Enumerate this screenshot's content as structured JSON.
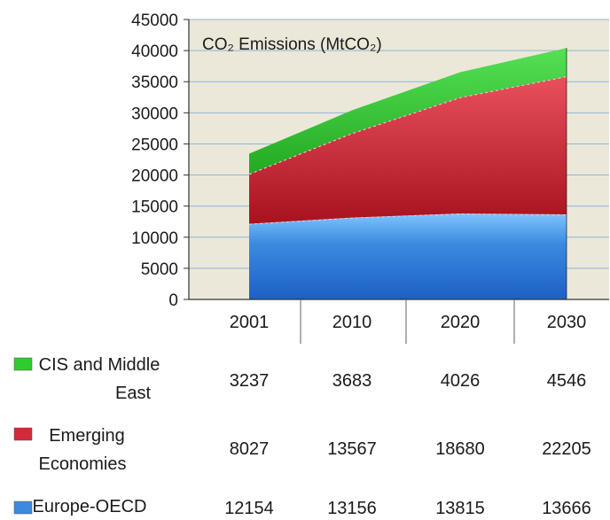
{
  "chart_data": {
    "type": "area",
    "title": "CO₂ Emissions (MtCO₂)",
    "xlabel": "",
    "ylabel": "",
    "ylim": [
      0,
      45000
    ],
    "yticks": [
      "45000",
      "40000",
      "35000",
      "30000",
      "25000",
      "20000",
      "15000",
      "10000",
      "5000",
      "0"
    ],
    "categories": [
      "2001",
      "2010",
      "2020",
      "2030"
    ],
    "stacked": true,
    "grid": true,
    "legend": "data-table-left",
    "series": [
      {
        "name": "CIS and Middle East",
        "name_lines": [
          "CIS and Middle",
          "East"
        ],
        "color": "#2ecc2e",
        "values": [
          3237,
          3683,
          4026,
          4546
        ],
        "value_labels": [
          "3237",
          "3683",
          "4026",
          "4546"
        ]
      },
      {
        "name": "Emerging Economies",
        "name_lines": [
          "Emerging",
          "Economies"
        ],
        "color": "#d42a38",
        "values": [
          8027,
          13567,
          18680,
          22205
        ],
        "value_labels": [
          "8027",
          "13567",
          "18680",
          "22205"
        ]
      },
      {
        "name": "Europe-OECD",
        "name_lines": [
          "Europe-OECD"
        ],
        "color": "#3a8be0",
        "values": [
          12154,
          13156,
          13815,
          13666
        ],
        "value_labels": [
          "12154",
          "13156",
          "13815",
          "13666"
        ]
      }
    ],
    "colors": {
      "plot_background": "#ebe8d9",
      "gridline": "#8fb3d9",
      "axis": "#333333",
      "table_line": "#7a7a7a"
    }
  }
}
